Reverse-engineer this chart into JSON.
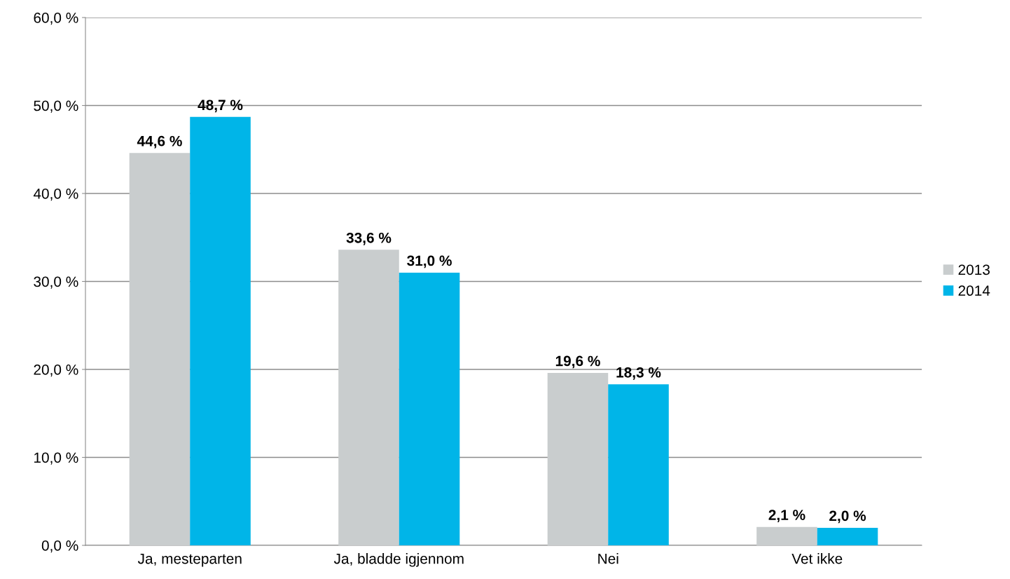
{
  "chart_data": {
    "type": "bar",
    "categories": [
      "Ja, mesteparten",
      "Ja, bladde igjennom",
      "Nei",
      "Vet ikke"
    ],
    "series": [
      {
        "name": "2013",
        "color": "#c9cdce",
        "values": [
          44.6,
          33.6,
          19.6,
          2.1
        ],
        "value_labels": [
          "44,6 %",
          "33,6 %",
          "19,6 %",
          "2,1 %"
        ]
      },
      {
        "name": "2014",
        "color": "#00b5e8",
        "values": [
          48.7,
          31.0,
          18.3,
          2.0
        ],
        "value_labels": [
          "48,7 %",
          "31,0 %",
          "18,3 %",
          "2,0 %"
        ]
      }
    ],
    "ylim": [
      0,
      60
    ],
    "yticks": [
      {
        "value": 0,
        "label": "0,0 %"
      },
      {
        "value": 10,
        "label": "10,0 %"
      },
      {
        "value": 20,
        "label": "20,0 %"
      },
      {
        "value": 30,
        "label": "30,0 %"
      },
      {
        "value": 40,
        "label": "40,0 %"
      },
      {
        "value": 50,
        "label": "50,0 %"
      },
      {
        "value": 60,
        "label": "60,0 %"
      }
    ],
    "grid": "y",
    "legend": "right"
  }
}
